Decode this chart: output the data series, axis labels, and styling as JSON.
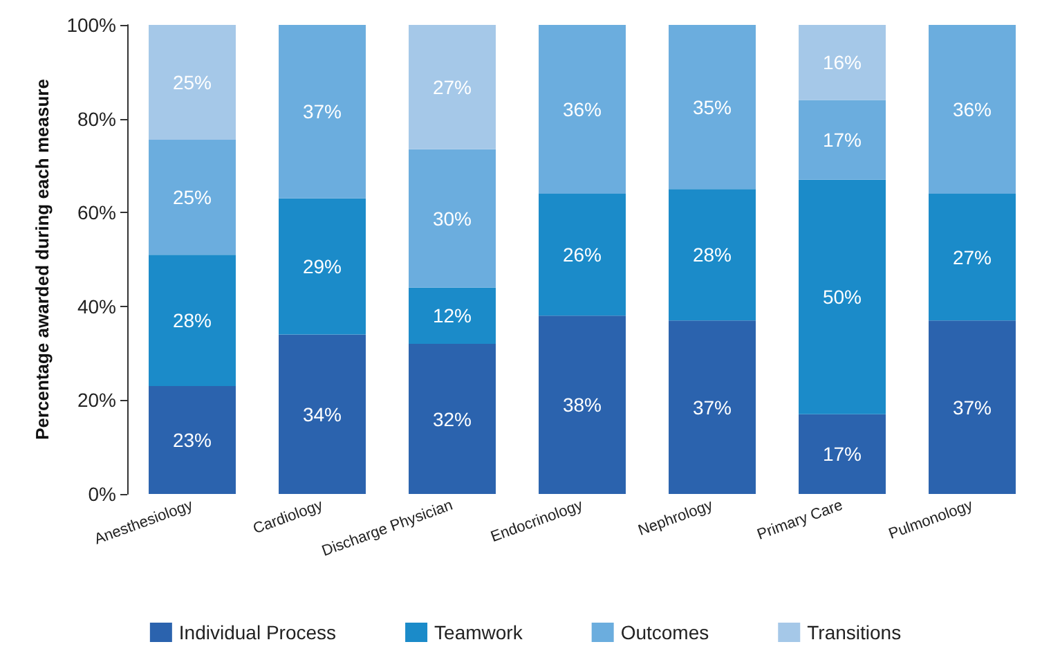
{
  "chart_data": {
    "type": "bar",
    "stacked": true,
    "ylabel": "Percentage awarded during each measure",
    "categories": [
      "Anesthesiology",
      "Cardiology",
      "Discharge Physician",
      "Endocrinology",
      "Nephrology",
      "Primary Care",
      "Pulmonology"
    ],
    "series": [
      {
        "name": "Individual Process",
        "color": "#2b63ae",
        "values": [
          23,
          34,
          32,
          38,
          37,
          17,
          37
        ],
        "value_labels": [
          "23%",
          "34%",
          "32%",
          "38%",
          "37%",
          "17%",
          "37%"
        ]
      },
      {
        "name": "Teamwork",
        "color": "#1b8bc9",
        "values": [
          28,
          29,
          12,
          26,
          28,
          50,
          27
        ],
        "value_labels": [
          "28%",
          "29%",
          "12%",
          "26%",
          "28%",
          "50%",
          "27%"
        ]
      },
      {
        "name": "Outcomes",
        "color": "#6badde",
        "values": [
          24.5,
          37,
          29.5,
          36,
          35,
          17,
          36
        ],
        "value_labels": [
          "25%",
          "37%",
          "30%",
          "36%",
          "35%",
          "17%",
          "36%"
        ]
      },
      {
        "name": "Transitions",
        "color": "#a5c8e8",
        "values": [
          24.5,
          null,
          26.5,
          null,
          null,
          16,
          null
        ],
        "value_labels": [
          "25%",
          null,
          "27%",
          null,
          null,
          "16%",
          null
        ]
      }
    ],
    "ylim": [
      0,
      100
    ],
    "yticks": [
      {
        "value": 0,
        "label": "0%"
      },
      {
        "value": 20,
        "label": "20%"
      },
      {
        "value": 40,
        "label": "40%"
      },
      {
        "value": 60,
        "label": "60%"
      },
      {
        "value": 80,
        "label": "80%"
      },
      {
        "value": 100,
        "label": "100%"
      }
    ],
    "grid": false,
    "legend": "bottom"
  }
}
